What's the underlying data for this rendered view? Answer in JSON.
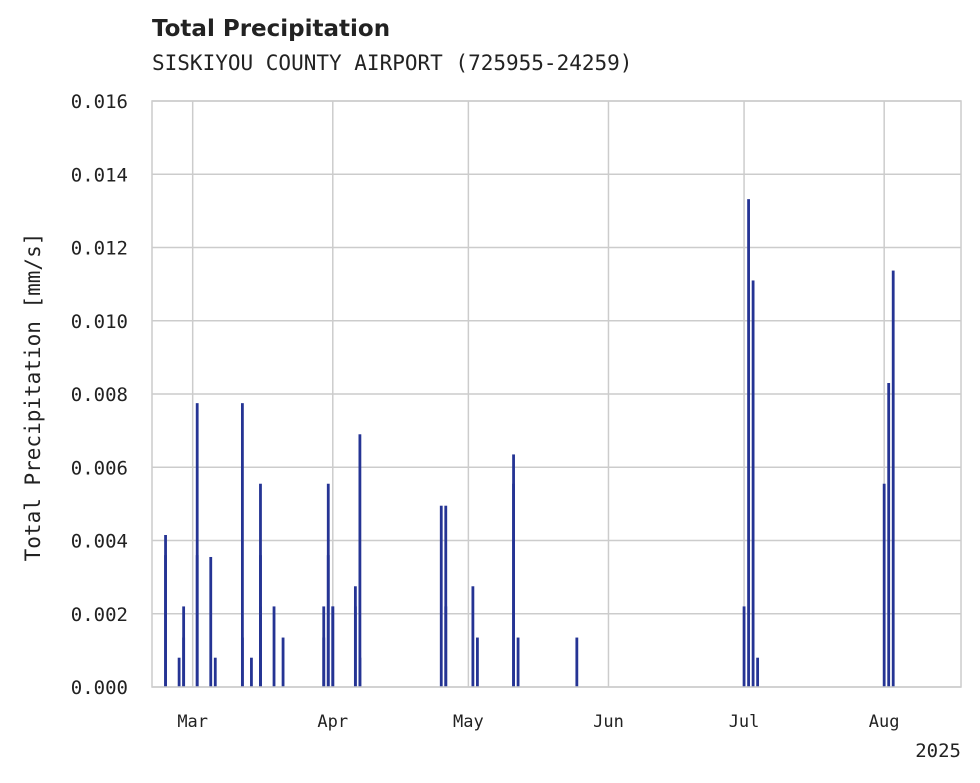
{
  "chart_data": {
    "type": "bar",
    "title": "Total Precipitation",
    "subtitle": "SISKIYOU COUNTY AIRPORT (725955-24259)",
    "xlabel": "",
    "ylabel": "Total Precipitation [mm/s]",
    "ylim": [
      0,
      0.016
    ],
    "yticks": [
      "0.000",
      "0.002",
      "0.004",
      "0.006",
      "0.008",
      "0.010",
      "0.012",
      "0.014",
      "0.016"
    ],
    "xlim": [
      "2025-02-20",
      "2025-08-18"
    ],
    "xticks": [
      {
        "date": "2025-03-01",
        "label": "Mar"
      },
      {
        "date": "2025-04-01",
        "label": "Apr"
      },
      {
        "date": "2025-05-01",
        "label": "May"
      },
      {
        "date": "2025-06-01",
        "label": "Jun"
      },
      {
        "date": "2025-07-01",
        "label": "Jul"
      },
      {
        "date": "2025-08-01",
        "label": "Aug"
      }
    ],
    "x_offset_label": "2025",
    "grid": true,
    "bar_color": "#253494",
    "x": [
      "2025-02-23",
      "2025-02-23",
      "2025-02-26",
      "2025-02-27",
      "2025-02-27",
      "2025-03-02",
      "2025-03-02",
      "2025-03-05",
      "2025-03-06",
      "2025-03-12",
      "2025-03-12",
      "2025-03-14",
      "2025-03-16",
      "2025-03-16",
      "2025-03-16",
      "2025-03-19",
      "2025-03-21",
      "2025-03-30",
      "2025-03-30",
      "2025-03-31",
      "2025-03-31",
      "2025-04-01",
      "2025-04-01",
      "2025-04-06",
      "2025-04-06",
      "2025-04-07",
      "2025-04-07",
      "2025-04-25",
      "2025-04-26",
      "2025-04-26",
      "2025-05-02",
      "2025-05-03",
      "2025-05-11",
      "2025-05-11",
      "2025-05-12",
      "2025-05-25",
      "2025-07-01",
      "2025-07-02",
      "2025-07-03",
      "2025-07-04",
      "2025-08-01",
      "2025-08-02",
      "2025-08-03"
    ],
    "values": [
      0.0036,
      0.00415,
      0.0008,
      0.00135,
      0.0022,
      0.0036,
      0.00775,
      0.00355,
      0.0008,
      0.00775,
      0.00135,
      0.0008,
      0.0022,
      0.0036,
      0.00555,
      0.0022,
      0.00135,
      0.0022,
      0.00135,
      0.00555,
      0.0036,
      0.0022,
      0.0022,
      0.0022,
      0.00275,
      0.0008,
      0.0069,
      0.00495,
      0.00495,
      0.0022,
      0.00275,
      0.00135,
      0.00555,
      0.00635,
      0.00135,
      0.00135,
      0.0022,
      0.01332,
      0.0111,
      0.0008,
      0.00555,
      0.0083,
      0.01137
    ]
  }
}
